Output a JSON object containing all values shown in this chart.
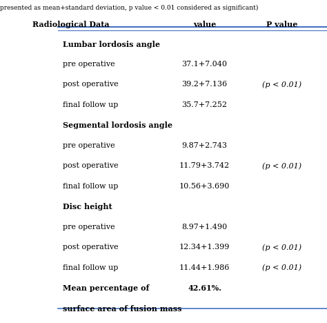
{
  "title_note": "presented as mean+standard deviation, p value < 0.01 considered as significant)",
  "col_headers": [
    "Radiological Data",
    "value",
    "P value"
  ],
  "rows": [
    {
      "label": "Lumbar lordosis angle",
      "value": "",
      "pvalue": "",
      "is_header": true
    },
    {
      "label": "pre operative",
      "value": "37.1+7.040",
      "pvalue": "",
      "is_header": false
    },
    {
      "label": "post operative",
      "value": "39.2+7.136",
      "pvalue": "(p < 0.01)",
      "is_header": false
    },
    {
      "label": "final follow up",
      "value": "35.7+7.252",
      "pvalue": "",
      "is_header": false
    },
    {
      "label": "Segmental lordosis angle",
      "value": "",
      "pvalue": "",
      "is_header": true
    },
    {
      "label": "pre operative",
      "value": "9.87+2.743",
      "pvalue": "",
      "is_header": false
    },
    {
      "label": "post operative",
      "value": "11.79+3.742",
      "pvalue": "(p < 0.01)",
      "is_header": false
    },
    {
      "label": "final follow up",
      "value": "10.56+3.690",
      "pvalue": "",
      "is_header": false
    },
    {
      "label": "Disc height",
      "value": "",
      "pvalue": "",
      "is_header": true
    },
    {
      "label": "pre operative",
      "value": "8.97+1.490",
      "pvalue": "",
      "is_header": false
    },
    {
      "label": "post operative",
      "value": "12.34+1.399",
      "pvalue": "(p < 0.01)",
      "is_header": false
    },
    {
      "label": "final follow up",
      "value": "11.44+1.986",
      "pvalue": "(p < 0.01)",
      "is_header": false
    },
    {
      "label": "Mean percentage of",
      "value": "42.61%.",
      "pvalue": "",
      "is_header": true,
      "value_center": true
    },
    {
      "label": "surface area of fusion mass",
      "value": "",
      "pvalue": "",
      "is_header": true
    }
  ],
  "bg_color": "#ffffff",
  "header_line_color": "#4472c4",
  "text_color": "#000000",
  "note_color": "#000000"
}
